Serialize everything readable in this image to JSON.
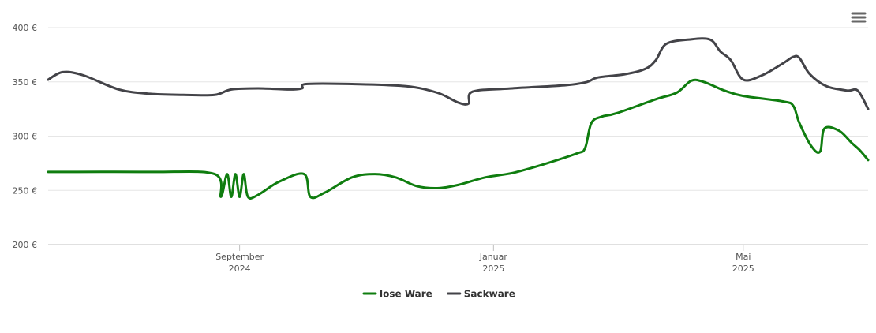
{
  "chart_data": {
    "type": "line",
    "title": "",
    "xlabel": "",
    "ylabel": "",
    "ylim": [
      200,
      400
    ],
    "y_ticks": [
      {
        "value": 200,
        "label": "200 €"
      },
      {
        "value": 250,
        "label": "250 €"
      },
      {
        "value": 300,
        "label": "300 €"
      },
      {
        "value": 350,
        "label": "350 €"
      },
      {
        "value": 400,
        "label": "400 €"
      }
    ],
    "xlim": [
      "2024-06-01",
      "2025-06-30"
    ],
    "x_ticks": [
      {
        "date": "2024-09-01",
        "line1": "September",
        "line2": "2024"
      },
      {
        "date": "2025-01-01",
        "line1": "Januar",
        "line2": "2025"
      },
      {
        "date": "2025-05-01",
        "line1": "Mai",
        "line2": "2025"
      }
    ],
    "grid": "horizontal",
    "legend_position": "bottom-center",
    "series": [
      {
        "name": "lose Ware",
        "color": "#0f7d0f",
        "points": [
          [
            "2024-06-01",
            267
          ],
          [
            "2024-07-20",
            267
          ],
          [
            "2024-08-20",
            265
          ],
          [
            "2024-08-23",
            244
          ],
          [
            "2024-08-26",
            265
          ],
          [
            "2024-08-28",
            244
          ],
          [
            "2024-08-30",
            265
          ],
          [
            "2024-09-01",
            244
          ],
          [
            "2024-09-03",
            265
          ],
          [
            "2024-09-05",
            244
          ],
          [
            "2024-09-10",
            246
          ],
          [
            "2024-09-20",
            258
          ],
          [
            "2024-10-02",
            265
          ],
          [
            "2024-10-05",
            244
          ],
          [
            "2024-10-12",
            248
          ],
          [
            "2024-10-25",
            262
          ],
          [
            "2024-11-05",
            265
          ],
          [
            "2024-11-15",
            262
          ],
          [
            "2024-11-25",
            254
          ],
          [
            "2024-12-05",
            252
          ],
          [
            "2024-12-15",
            255
          ],
          [
            "2024-12-28",
            262
          ],
          [
            "2025-01-10",
            266
          ],
          [
            "2025-01-25",
            274
          ],
          [
            "2025-02-10",
            284
          ],
          [
            "2025-02-14",
            289
          ],
          [
            "2025-02-17",
            312
          ],
          [
            "2025-02-22",
            318
          ],
          [
            "2025-03-01",
            321
          ],
          [
            "2025-03-20",
            334
          ],
          [
            "2025-03-30",
            340
          ],
          [
            "2025-04-06",
            351
          ],
          [
            "2025-04-12",
            350
          ],
          [
            "2025-04-22",
            342
          ],
          [
            "2025-05-01",
            337
          ],
          [
            "2025-05-20",
            332
          ],
          [
            "2025-05-25",
            328
          ],
          [
            "2025-05-28",
            312
          ],
          [
            "2025-06-03",
            290
          ],
          [
            "2025-06-07",
            286
          ],
          [
            "2025-06-09",
            307
          ],
          [
            "2025-06-16",
            305
          ],
          [
            "2025-06-22",
            294
          ],
          [
            "2025-06-26",
            287
          ],
          [
            "2025-06-30",
            278
          ]
        ]
      },
      {
        "name": "Sackware",
        "color": "#434348",
        "points": [
          [
            "2024-06-01",
            352
          ],
          [
            "2024-06-08",
            359
          ],
          [
            "2024-06-18",
            356
          ],
          [
            "2024-07-05",
            343
          ],
          [
            "2024-07-20",
            339
          ],
          [
            "2024-08-05",
            338
          ],
          [
            "2024-08-20",
            338
          ],
          [
            "2024-08-28",
            343
          ],
          [
            "2024-09-10",
            344
          ],
          [
            "2024-09-25",
            343
          ],
          [
            "2024-10-01",
            344
          ],
          [
            "2024-10-03",
            348
          ],
          [
            "2024-10-25",
            348
          ],
          [
            "2024-11-20",
            346
          ],
          [
            "2024-12-05",
            340
          ],
          [
            "2024-12-15",
            331
          ],
          [
            "2024-12-20",
            330
          ],
          [
            "2024-12-22",
            341
          ],
          [
            "2025-01-10",
            344
          ],
          [
            "2025-02-05",
            347
          ],
          [
            "2025-02-15",
            350
          ],
          [
            "2025-02-20",
            354
          ],
          [
            "2025-03-05",
            357
          ],
          [
            "2025-03-15",
            362
          ],
          [
            "2025-03-20",
            370
          ],
          [
            "2025-03-25",
            385
          ],
          [
            "2025-04-05",
            389
          ],
          [
            "2025-04-15",
            389
          ],
          [
            "2025-04-20",
            378
          ],
          [
            "2025-04-25",
            370
          ],
          [
            "2025-05-01",
            352
          ],
          [
            "2025-05-10",
            356
          ],
          [
            "2025-05-20",
            367
          ],
          [
            "2025-05-25",
            373
          ],
          [
            "2025-05-28",
            372
          ],
          [
            "2025-06-02",
            357
          ],
          [
            "2025-06-10",
            346
          ],
          [
            "2025-06-20",
            342
          ],
          [
            "2025-06-25",
            342
          ],
          [
            "2025-06-30",
            325
          ]
        ]
      }
    ]
  },
  "menu": {
    "icon": "hamburger-menu-icon"
  }
}
